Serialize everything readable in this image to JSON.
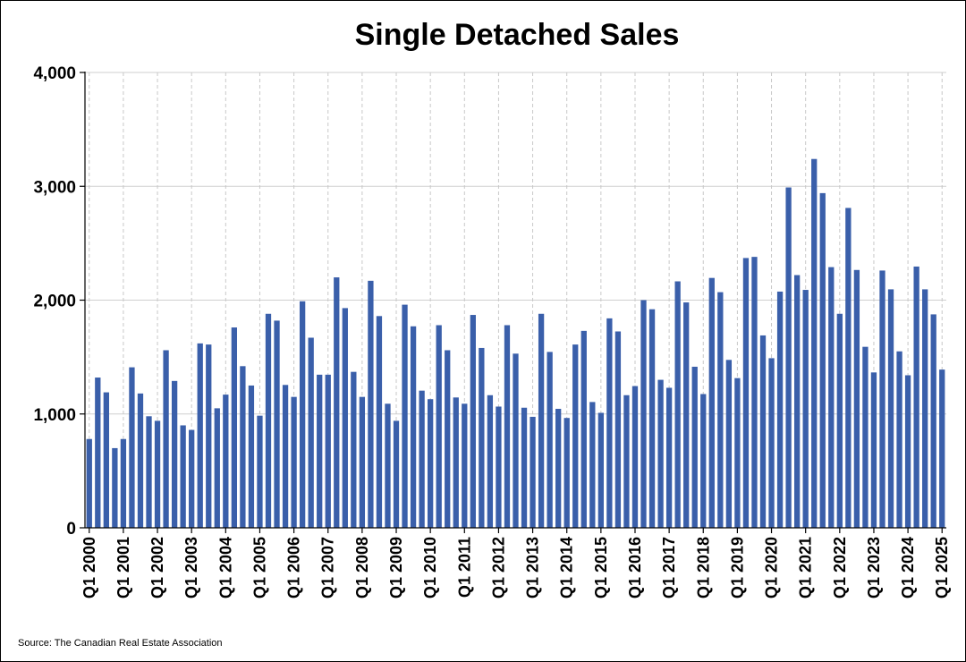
{
  "chart_data": {
    "type": "bar",
    "title": "Single Detached Sales",
    "source": "Source: The Canadian Real Estate Association",
    "xlabel": "",
    "ylabel": "",
    "ylim": [
      0,
      4000
    ],
    "yticks": [
      0,
      1000,
      2000,
      3000,
      4000
    ],
    "ytick_labels": [
      "0",
      "1,000",
      "2,000",
      "3,000",
      "4,000"
    ],
    "bar_color": "#3A5FAA",
    "grid": true,
    "start_year": 2000,
    "xtick_labels": [
      "Q1 2000",
      "Q1 2001",
      "Q1 2002",
      "Q1 2003",
      "Q1 2004",
      "Q1 2005",
      "Q1 2006",
      "Q1 2007",
      "Q1 2008",
      "Q1 2009",
      "Q1 2010",
      "Q1 2011",
      "Q1 2012",
      "Q1 2013",
      "Q1 2014",
      "Q1 2015",
      "Q1 2016",
      "Q1 2017",
      "Q1 2018",
      "Q1 2019",
      "Q1 2020",
      "Q1 2021",
      "Q1 2022",
      "Q1 2023",
      "Q1 2024",
      "Q1 2025"
    ],
    "values": [
      780,
      1320,
      1190,
      700,
      780,
      1410,
      1180,
      980,
      940,
      1560,
      1290,
      900,
      860,
      1620,
      1610,
      1050,
      1170,
      1760,
      1420,
      1250,
      985,
      1880,
      1820,
      1255,
      1150,
      1990,
      1670,
      1345,
      1345,
      2200,
      1930,
      1370,
      1150,
      2170,
      1860,
      1090,
      940,
      1960,
      1770,
      1205,
      1130,
      1780,
      1560,
      1145,
      1090,
      1870,
      1580,
      1165,
      1065,
      1780,
      1530,
      1055,
      975,
      1880,
      1545,
      1045,
      965,
      1610,
      1730,
      1105,
      1010,
      1840,
      1725,
      1165,
      1245,
      2000,
      1920,
      1300,
      1230,
      2165,
      1980,
      1415,
      1175,
      2195,
      2070,
      1475,
      1315,
      2370,
      2380,
      1690,
      1490,
      2075,
      2990,
      2220,
      2090,
      3240,
      2940,
      2290,
      1880,
      2810,
      2265,
      1590,
      1365,
      2260,
      2095,
      1550,
      1340,
      2295,
      2095,
      1875,
      1390
    ]
  }
}
